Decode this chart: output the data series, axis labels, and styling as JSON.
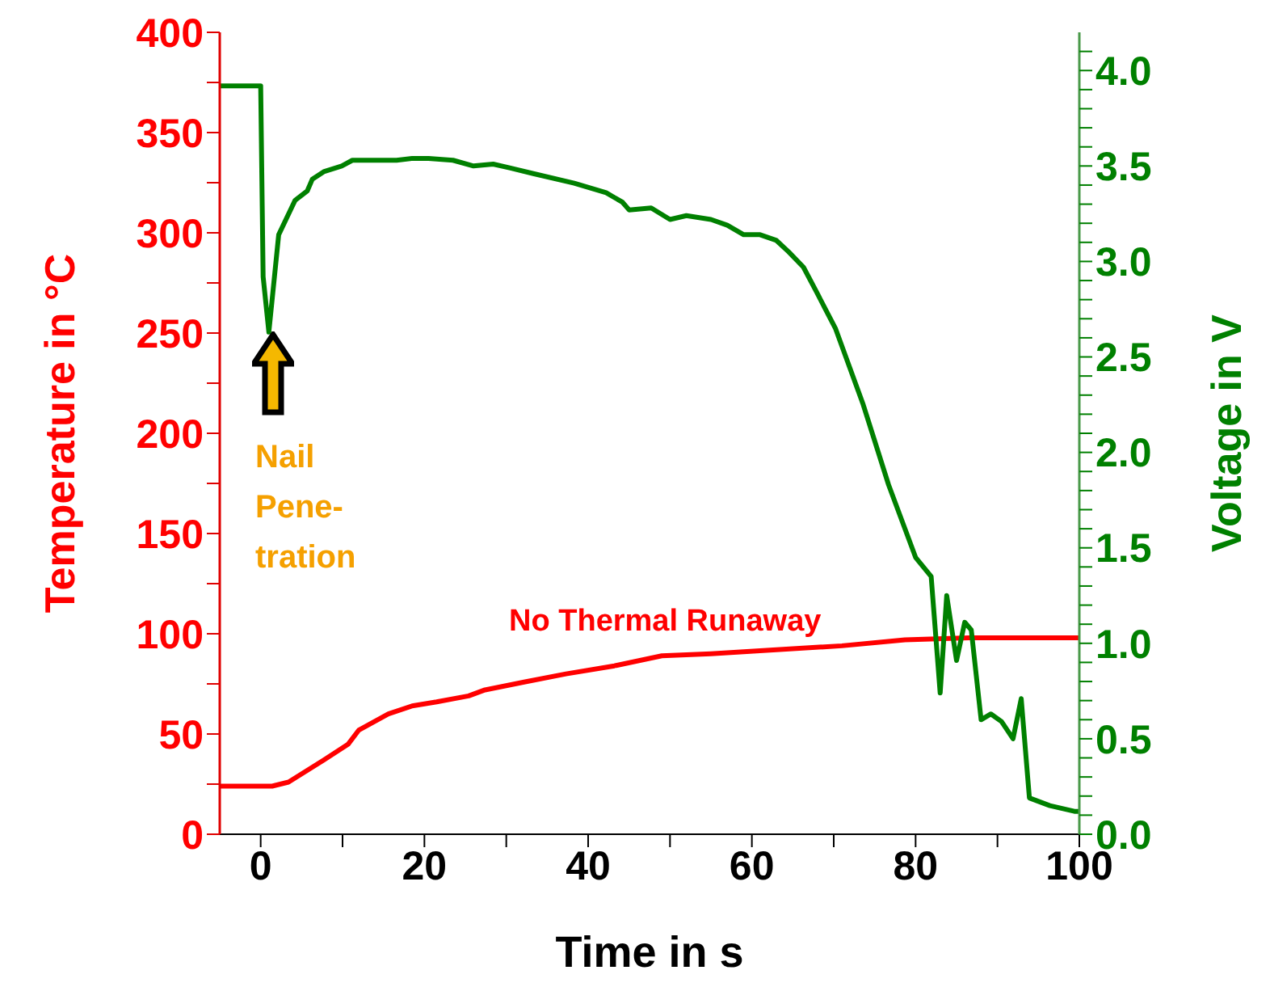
{
  "chart_data": {
    "type": "line",
    "xlabel": "Time in s",
    "ylabel": "Temperature in °C",
    "y2label": "Voltage in V",
    "xlim": [
      -5,
      100
    ],
    "xticks": [
      0,
      {
        "value": 10,
        "label": null
      },
      20,
      {
        "value": 30,
        "label": null
      },
      40,
      {
        "value": 50,
        "label": null
      },
      60,
      {
        "value": 70,
        "label": null
      },
      80,
      {
        "value": 90,
        "label": null
      },
      100
    ],
    "ylim": [
      0,
      400
    ],
    "yticks": [
      0,
      {
        "value": 25,
        "label": null
      },
      50,
      {
        "value": 75,
        "label": null
      },
      100,
      {
        "value": 125,
        "label": null
      },
      150,
      {
        "value": 175,
        "label": null
      },
      200,
      {
        "value": 225,
        "label": null
      },
      250,
      {
        "value": 275,
        "label": null
      },
      300,
      {
        "value": 325,
        "label": null
      },
      350,
      {
        "value": 375,
        "label": null
      },
      400
    ],
    "y2lim": [
      0,
      4.2
    ],
    "y2ticks": [
      {
        "value": 0,
        "label": "0.0"
      },
      {
        "value": 0.1,
        "label": null
      },
      {
        "value": 0.2,
        "label": null
      },
      {
        "value": 0.3,
        "label": null
      },
      {
        "value": 0.4,
        "label": null
      },
      {
        "value": 0.5,
        "label": "0.5"
      },
      {
        "value": 0.6,
        "label": null
      },
      {
        "value": 0.7,
        "label": null
      },
      {
        "value": 0.8,
        "label": null
      },
      {
        "value": 0.9,
        "label": null
      },
      {
        "value": 1,
        "label": "1.0"
      },
      {
        "value": 1.1,
        "label": null
      },
      {
        "value": 1.2,
        "label": null
      },
      {
        "value": 1.3,
        "label": null
      },
      {
        "value": 1.4,
        "label": null
      },
      {
        "value": 1.5,
        "label": "1.5"
      },
      {
        "value": 1.6,
        "label": null
      },
      {
        "value": 1.7,
        "label": null
      },
      {
        "value": 1.8,
        "label": null
      },
      {
        "value": 1.9,
        "label": null
      },
      {
        "value": 2,
        "label": "2.0"
      },
      {
        "value": 2.1,
        "label": null
      },
      {
        "value": 2.2,
        "label": null
      },
      {
        "value": 2.3,
        "label": null
      },
      {
        "value": 2.4,
        "label": null
      },
      {
        "value": 2.5,
        "label": "2.5"
      },
      {
        "value": 2.6,
        "label": null
      },
      {
        "value": 2.7,
        "label": null
      },
      {
        "value": 2.8,
        "label": null
      },
      {
        "value": 2.9,
        "label": null
      },
      {
        "value": 3,
        "label": "3.0"
      },
      {
        "value": 3.1,
        "label": null
      },
      {
        "value": 3.2,
        "label": null
      },
      {
        "value": 3.3,
        "label": null
      },
      {
        "value": 3.4,
        "label": null
      },
      {
        "value": 3.5,
        "label": "3.5"
      },
      {
        "value": 3.6,
        "label": null
      },
      {
        "value": 3.7,
        "label": null
      },
      {
        "value": 3.8,
        "label": null
      },
      {
        "value": 3.9,
        "label": null
      },
      {
        "value": 4,
        "label": "4.0"
      },
      {
        "value": 4.1,
        "label": null
      }
    ],
    "marker": "none",
    "line_style": "solid",
    "annotations": [
      "Nail\nPene-\ntration",
      "No Thermal Runaway"
    ],
    "series": [
      {
        "color": "#ff0000",
        "x": [
          -5,
          1.4,
          3.4,
          7.7,
          10.7,
          12,
          15.6,
          18.5,
          21.5,
          25.4,
          27.4,
          32.3,
          37.3,
          43.2,
          49,
          55,
          63,
          71,
          78.7,
          86.6,
          100
        ],
        "values": [
          24,
          24,
          26,
          37,
          45,
          52,
          60,
          64,
          66,
          69,
          72,
          76,
          80,
          84,
          89,
          90,
          92,
          94,
          97,
          98,
          98
        ]
      },
      {
        "color": "#008000",
        "axis": "y2",
        "x": [
          -5,
          0,
          0.3,
          1,
          2.2,
          4.2,
          5.7,
          6.3,
          7.7,
          9.9,
          11.2,
          16.6,
          18.5,
          20.5,
          23.5,
          26,
          28.4,
          30.4,
          33.3,
          38.3,
          42.2,
          44.2,
          45,
          47.7,
          50,
          52,
          55,
          57,
          59,
          61,
          63,
          64.5,
          66.3,
          67.9,
          70.2,
          73.6,
          76.7,
          80,
          81.9,
          83,
          83.8,
          85,
          86,
          86.8,
          88,
          89.2,
          90.5,
          91.9,
          92.9,
          93.9,
          96.4,
          99.4,
          100
        ],
        "values": [
          3.92,
          3.92,
          2.92,
          2.63,
          3.14,
          3.32,
          3.37,
          3.43,
          3.47,
          3.5,
          3.53,
          3.53,
          3.54,
          3.54,
          3.53,
          3.5,
          3.51,
          3.49,
          3.46,
          3.41,
          3.36,
          3.31,
          3.27,
          3.28,
          3.22,
          3.24,
          3.22,
          3.19,
          3.14,
          3.14,
          3.11,
          3.05,
          2.97,
          2.84,
          2.65,
          2.25,
          1.83,
          1.45,
          1.35,
          0.74,
          1.25,
          0.91,
          1.11,
          1.07,
          0.6,
          0.63,
          0.59,
          0.5,
          0.71,
          0.19,
          0.15,
          0.12,
          0.12
        ]
      }
    ]
  }
}
